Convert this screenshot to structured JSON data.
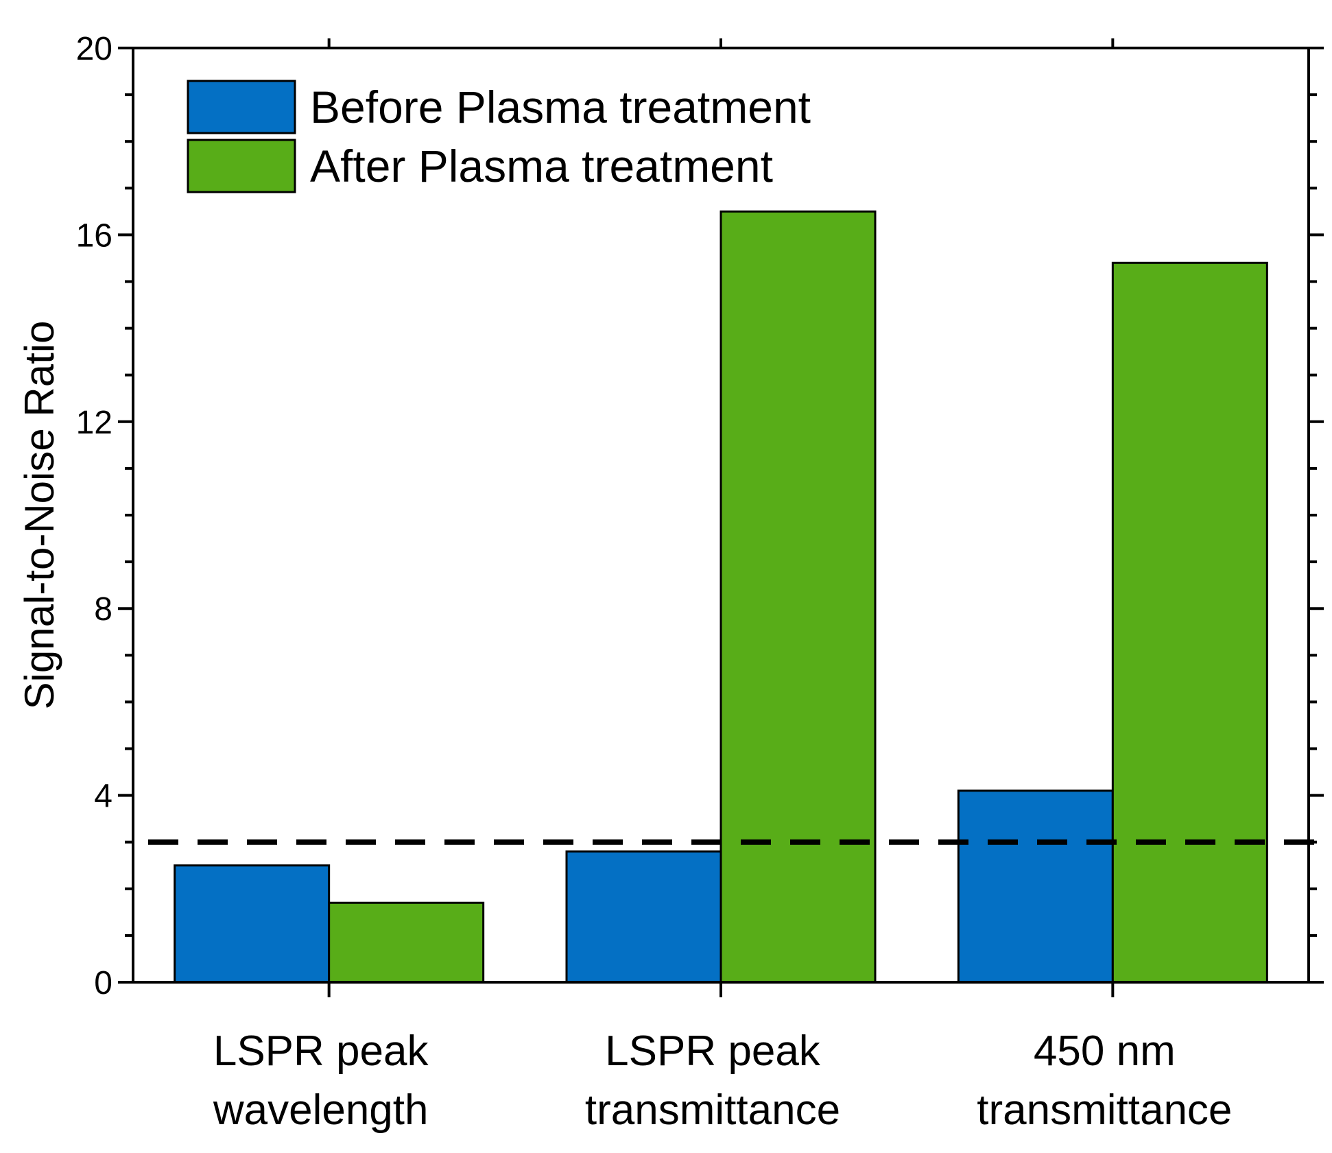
{
  "chart_data": {
    "type": "bar",
    "title": "",
    "xlabel": "",
    "ylabel": "Signal-to-Noise Ratio",
    "ylim": [
      0,
      20
    ],
    "yticks": [
      "0",
      "4",
      "8",
      "12",
      "16",
      "20"
    ],
    "categories": [
      [
        "LSPR peak",
        "wavelength"
      ],
      [
        "LSPR peak",
        "transmittance"
      ],
      [
        "450 nm",
        "transmittance"
      ]
    ],
    "series": [
      {
        "name": "Before Plasma treatment",
        "color": "#0470c4",
        "values": [
          2.5,
          2.8,
          4.1
        ]
      },
      {
        "name": "After Plasma treatment",
        "color": "#58ad18",
        "values": [
          1.7,
          16.5,
          15.4
        ]
      }
    ],
    "threshold": {
      "value": 3,
      "style": "dashed",
      "color": "#000000"
    },
    "legend_position": "top-left",
    "grid": false
  }
}
